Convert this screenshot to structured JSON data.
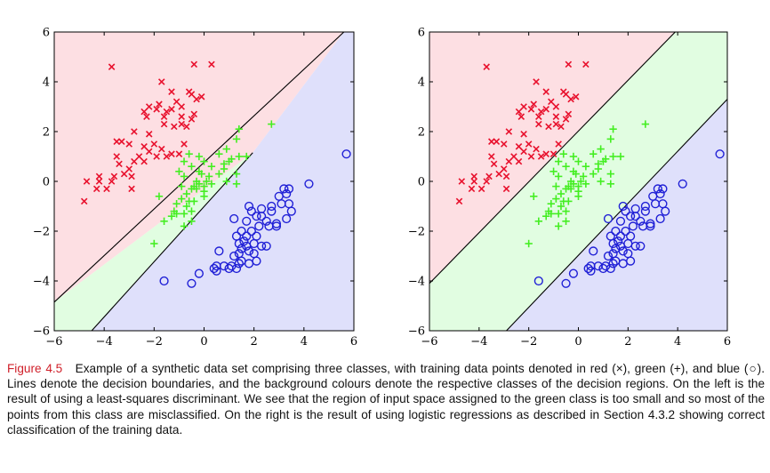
{
  "caption": {
    "figure_label": "Figure 4.5",
    "text": "Example of a synthetic data set comprising three classes, with training data points denoted in red (×), green (+), and blue (○). Lines denote the decision boundaries, and the background colours denote the respective classes of the decision regions. On the left is the result of using a least-squares discriminant. We see that the region of input space assigned to the green class is too small and so most of the points from this class are misclassified. On the right is the result of using logistic regressions as described in Section 4.3.2 showing correct classification of the training data."
  },
  "colors": {
    "red_marker": "#e8112d",
    "green_marker": "#44ee22",
    "blue_marker": "#1f1fd6",
    "red_region": "#fddfe3",
    "green_region": "#e1fde1",
    "blue_region": "#dfe0fb",
    "caption_label": "#d0202a"
  },
  "chart_data": [
    {
      "type": "scatter",
      "panel": "left",
      "method": "least-squares discriminant",
      "xlim": [
        -6,
        6
      ],
      "ylim": [
        -6,
        6
      ],
      "xticks": [
        -6,
        -4,
        -2,
        0,
        2,
        4,
        6
      ],
      "yticks": [
        -6,
        -4,
        -2,
        0,
        2,
        4,
        6
      ],
      "xtick_labels": [
        "−6",
        "−4",
        "−2",
        "0",
        "2",
        "4",
        "6"
      ],
      "ytick_labels": [
        "−6",
        "−4",
        "−2",
        "0",
        "2",
        "4",
        "6"
      ],
      "grid": false,
      "regions": [
        {
          "class": "red",
          "polygon": [
            [
              -6,
              -4.85
            ],
            [
              -6,
              6
            ],
            [
              5.6,
              6
            ],
            [
              1.95,
              1.15
            ]
          ]
        },
        {
          "class": "green",
          "polygon": [
            [
              -6,
              -4.85
            ],
            [
              1.95,
              1.15
            ],
            [
              -4.5,
              -6
            ],
            [
              -6,
              -6
            ]
          ]
        },
        {
          "class": "blue",
          "polygon": [
            [
              -4.5,
              -6
            ],
            [
              1.95,
              1.15
            ],
            [
              5.6,
              6
            ],
            [
              6,
              6
            ],
            [
              6,
              -6
            ]
          ]
        }
      ],
      "boundaries": [
        {
          "x": [
            -6,
            5.6
          ],
          "y": [
            -4.85,
            6
          ]
        },
        {
          "x": [
            -4.5,
            1.95
          ],
          "y": [
            -6,
            1.15
          ]
        }
      ]
    },
    {
      "type": "scatter",
      "panel": "right",
      "method": "logistic regression",
      "xlim": [
        -6,
        6
      ],
      "ylim": [
        -6,
        6
      ],
      "xticks": [
        -6,
        -4,
        -2,
        0,
        2,
        4,
        6
      ],
      "yticks": [
        -6,
        -4,
        -2,
        0,
        2,
        4,
        6
      ],
      "xtick_labels": [
        "−6",
        "−4",
        "−2",
        "0",
        "2",
        "4",
        "6"
      ],
      "ytick_labels": [
        "−6",
        "−4",
        "−2",
        "0",
        "2",
        "4",
        "6"
      ],
      "grid": false,
      "regions": [
        {
          "class": "red",
          "polygon": [
            [
              -6,
              -4.1
            ],
            [
              -6,
              6
            ],
            [
              3.9,
              6
            ]
          ]
        },
        {
          "class": "green",
          "polygon": [
            [
              -6,
              -4.1
            ],
            [
              3.9,
              6
            ],
            [
              6,
              6
            ],
            [
              6,
              3.3
            ],
            [
              -2.9,
              -6
            ],
            [
              -6,
              -6
            ]
          ]
        },
        {
          "class": "blue",
          "polygon": [
            [
              -2.9,
              -6
            ],
            [
              6,
              3.3
            ],
            [
              6,
              -6
            ]
          ]
        }
      ],
      "boundaries": [
        {
          "x": [
            -6,
            3.9
          ],
          "y": [
            -4.1,
            6
          ]
        },
        {
          "x": [
            -2.9,
            6
          ],
          "y": [
            -6,
            3.3
          ]
        }
      ]
    }
  ],
  "points": {
    "red": [
      [
        -3.7,
        4.6
      ],
      [
        -1.7,
        4.0
      ],
      [
        -0.4,
        4.7
      ],
      [
        0.3,
        4.7
      ],
      [
        -1.3,
        3.6
      ],
      [
        -0.1,
        3.4
      ],
      [
        -0.5,
        3.5
      ],
      [
        -0.3,
        3.3
      ],
      [
        -0.6,
        3.6
      ],
      [
        -1.1,
        3.2
      ],
      [
        -0.9,
        3.0
      ],
      [
        -1.3,
        2.9
      ],
      [
        -1.9,
        2.9
      ],
      [
        -1.5,
        2.8
      ],
      [
        -1.8,
        3.1
      ],
      [
        -1.6,
        2.6
      ],
      [
        -2.2,
        3.0
      ],
      [
        -2.3,
        2.6
      ],
      [
        -2.4,
        2.8
      ],
      [
        -1.6,
        2.3
      ],
      [
        -0.9,
        2.6
      ],
      [
        -0.4,
        2.7
      ],
      [
        -0.9,
        2.3
      ],
      [
        -0.5,
        2.5
      ],
      [
        -1.2,
        2.2
      ],
      [
        -0.7,
        2.2
      ],
      [
        -2.2,
        1.9
      ],
      [
        -2.8,
        2.0
      ],
      [
        -3.5,
        1.6
      ],
      [
        -3.3,
        1.6
      ],
      [
        -3.0,
        1.5
      ],
      [
        -2.4,
        1.4
      ],
      [
        -2.0,
        1.5
      ],
      [
        -1.7,
        1.3
      ],
      [
        -1.9,
        1.0
      ],
      [
        -1.3,
        1.1
      ],
      [
        -1.0,
        1.1
      ],
      [
        -2.6,
        1.0
      ],
      [
        -2.4,
        0.8
      ],
      [
        -2.8,
        0.8
      ],
      [
        -3.4,
        0.7
      ],
      [
        -3.5,
        1.0
      ],
      [
        -3.0,
        0.5
      ],
      [
        -3.2,
        0.3
      ],
      [
        -2.9,
        0.2
      ],
      [
        -3.6,
        0.2
      ],
      [
        -3.7,
        0.0
      ],
      [
        -4.2,
        0.2
      ],
      [
        -4.2,
        0.0
      ],
      [
        -4.3,
        -0.3
      ],
      [
        -4.7,
        0.0
      ],
      [
        -2.9,
        -0.3
      ],
      [
        -3.9,
        -0.3
      ],
      [
        -4.8,
        -0.8
      ],
      [
        -2.2,
        1.2
      ],
      [
        -1.5,
        1.0
      ],
      [
        -0.8,
        1.5
      ]
    ],
    "green": [
      [
        2.7,
        2.3
      ],
      [
        1.4,
        2.1
      ],
      [
        1.3,
        1.7
      ],
      [
        0.9,
        1.3
      ],
      [
        1.4,
        1.0
      ],
      [
        0.8,
        0.7
      ],
      [
        1.7,
        1.0
      ],
      [
        1.0,
        0.8
      ],
      [
        -0.8,
        0.8
      ],
      [
        -0.5,
        0.6
      ],
      [
        0.0,
        0.8
      ],
      [
        0.3,
        0.6
      ],
      [
        0.8,
        0.5
      ],
      [
        1.3,
        0.3
      ],
      [
        -1.0,
        0.4
      ],
      [
        -0.8,
        0.2
      ],
      [
        -0.2,
        0.4
      ],
      [
        0.2,
        0.2
      ],
      [
        -0.3,
        0.0
      ],
      [
        -0.2,
        -0.1
      ],
      [
        0.0,
        -0.2
      ],
      [
        0.1,
        0.0
      ],
      [
        -0.3,
        -0.3
      ],
      [
        0.0,
        -0.4
      ],
      [
        -0.5,
        -0.3
      ],
      [
        -0.7,
        -0.5
      ],
      [
        -0.4,
        -0.2
      ],
      [
        -0.9,
        -0.2
      ],
      [
        -0.9,
        -0.7
      ],
      [
        -0.6,
        -0.8
      ],
      [
        -1.1,
        -0.9
      ],
      [
        -0.7,
        -1.0
      ],
      [
        -0.5,
        -1.2
      ],
      [
        -0.8,
        -1.3
      ],
      [
        -1.3,
        -1.4
      ],
      [
        -1.1,
        -1.3
      ],
      [
        -0.5,
        -1.6
      ],
      [
        -0.8,
        -1.8
      ],
      [
        -1.6,
        -1.6
      ],
      [
        -1.8,
        -0.6
      ],
      [
        -2.0,
        -2.5
      ],
      [
        -1.2,
        -1.2
      ],
      [
        -0.4,
        -0.8
      ],
      [
        0.0,
        -0.6
      ],
      [
        0.3,
        -0.1
      ],
      [
        0.6,
        0.3
      ],
      [
        -0.1,
        0.3
      ],
      [
        0.9,
        0.0
      ],
      [
        1.3,
        -0.1
      ],
      [
        1.1,
        0.9
      ],
      [
        0.6,
        1.1
      ],
      [
        -0.2,
        1.0
      ],
      [
        -0.6,
        1.1
      ]
    ],
    "blue": [
      [
        5.7,
        1.1
      ],
      [
        4.2,
        -0.1
      ],
      [
        3.2,
        -0.3
      ],
      [
        3.4,
        -0.3
      ],
      [
        3.3,
        -0.5
      ],
      [
        3.0,
        -0.6
      ],
      [
        3.1,
        -0.9
      ],
      [
        3.4,
        -0.9
      ],
      [
        2.7,
        -1.0
      ],
      [
        3.5,
        -1.2
      ],
      [
        3.3,
        -1.5
      ],
      [
        1.8,
        -1.0
      ],
      [
        1.9,
        -1.2
      ],
      [
        2.3,
        -1.1
      ],
      [
        2.7,
        -1.2
      ],
      [
        2.1,
        -1.4
      ],
      [
        2.3,
        -1.4
      ],
      [
        1.2,
        -1.5
      ],
      [
        1.7,
        -1.6
      ],
      [
        2.5,
        -1.6
      ],
      [
        2.9,
        -1.7
      ],
      [
        2.6,
        -1.8
      ],
      [
        2.9,
        -1.8
      ],
      [
        2.2,
        -1.8
      ],
      [
        1.9,
        -2.0
      ],
      [
        2.1,
        -2.2
      ],
      [
        1.5,
        -2.0
      ],
      [
        1.7,
        -2.2
      ],
      [
        1.3,
        -2.2
      ],
      [
        1.6,
        -2.4
      ],
      [
        1.4,
        -2.5
      ],
      [
        2.0,
        -2.5
      ],
      [
        1.7,
        -2.6
      ],
      [
        2.3,
        -2.6
      ],
      [
        2.5,
        -2.6
      ],
      [
        1.5,
        -2.7
      ],
      [
        1.8,
        -2.8
      ],
      [
        1.4,
        -2.9
      ],
      [
        2.0,
        -2.9
      ],
      [
        1.2,
        -3.0
      ],
      [
        1.5,
        -3.2
      ],
      [
        2.1,
        -3.2
      ],
      [
        0.6,
        -2.8
      ],
      [
        1.1,
        -3.4
      ],
      [
        1.4,
        -3.3
      ],
      [
        1.8,
        -3.3
      ],
      [
        0.8,
        -3.4
      ],
      [
        0.5,
        -3.4
      ],
      [
        0.4,
        -3.5
      ],
      [
        1.0,
        -3.5
      ],
      [
        0.5,
        -3.6
      ],
      [
        -0.2,
        -3.7
      ],
      [
        -0.5,
        -4.1
      ],
      [
        -1.6,
        -4.0
      ],
      [
        1.3,
        -3.5
      ]
    ]
  }
}
